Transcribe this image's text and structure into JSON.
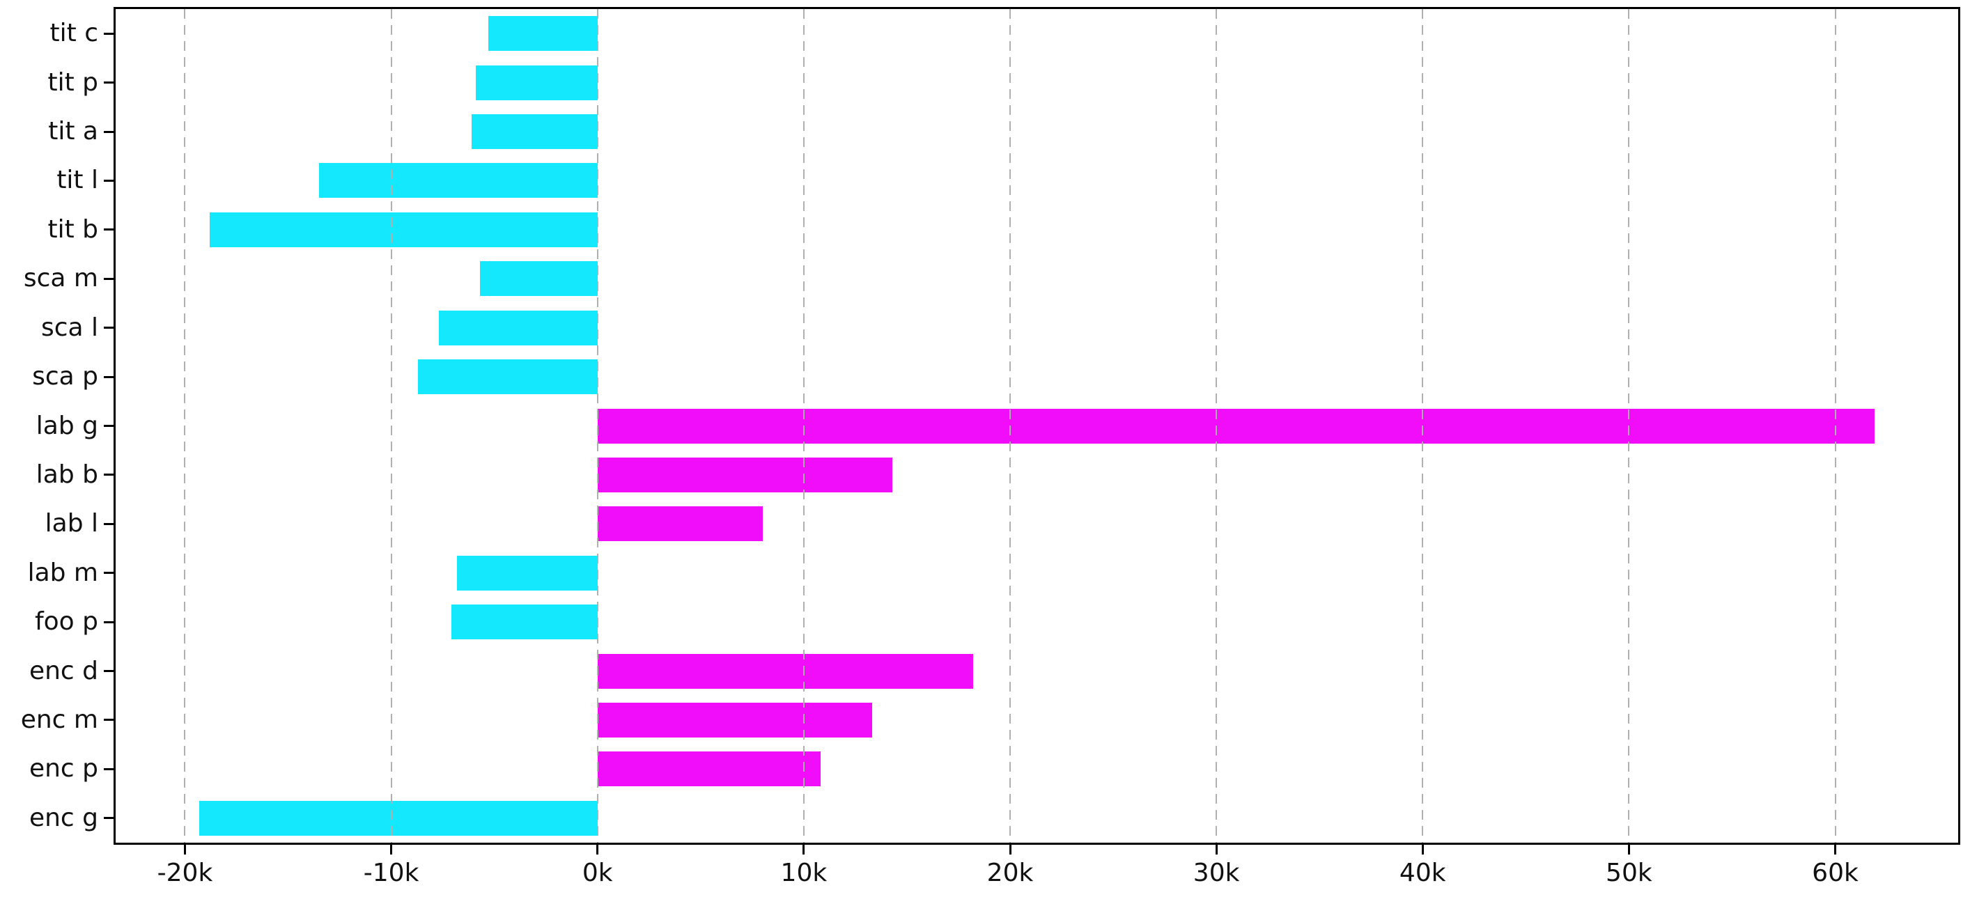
{
  "chart_data": {
    "type": "bar",
    "orientation": "horizontal",
    "title": "",
    "xlabel": "",
    "ylabel": "",
    "legend": "none",
    "grid": {
      "axis": "x",
      "style": "dashed",
      "color": "#b0b0b0",
      "above_bars": true
    },
    "value_unit": "k",
    "xlim_k": [
      -23.36,
      65.96
    ],
    "categories": [
      "tit c",
      "tit p",
      "tit a",
      "tit l",
      "tit b",
      "sca m",
      "sca l",
      "sca p",
      "lab g",
      "lab b",
      "lab l",
      "lab m",
      "foo p",
      "enc d",
      "enc m",
      "enc p",
      "enc g"
    ],
    "values_k": [
      -5.3,
      -5.9,
      -6.1,
      -13.5,
      -18.8,
      -5.7,
      -7.7,
      -8.7,
      61.9,
      14.3,
      8.0,
      -6.8,
      -7.1,
      18.2,
      13.3,
      10.8,
      -19.3
    ],
    "positive_color": "#f20dfa",
    "negative_color": "#13e8fd",
    "x_ticks": [
      {
        "value_k": -20,
        "label": "-20k"
      },
      {
        "value_k": -10,
        "label": "-10k"
      },
      {
        "value_k": 0,
        "label": "0k"
      },
      {
        "value_k": 10,
        "label": "10k"
      },
      {
        "value_k": 20,
        "label": "20k"
      },
      {
        "value_k": 30,
        "label": "30k"
      },
      {
        "value_k": 40,
        "label": "40k"
      },
      {
        "value_k": 50,
        "label": "50k"
      },
      {
        "value_k": 60,
        "label": "60k"
      }
    ]
  }
}
